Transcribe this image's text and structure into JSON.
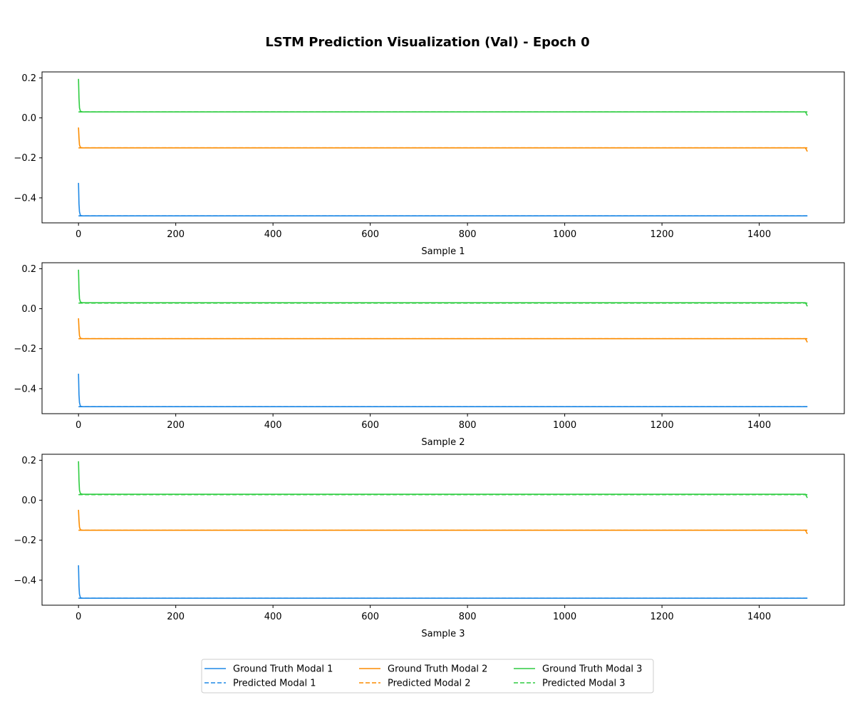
{
  "chart_data": {
    "type": "line",
    "title": "LSTM Prediction Visualization (Val) - Epoch 0",
    "colors": {
      "modal_1": "#1e88e5",
      "modal_2": "#fb8c00",
      "modal_3": "#2ecc40"
    },
    "legend": {
      "placement": "bottom-center",
      "ncol": 3,
      "entries": [
        {
          "label": "Ground Truth Modal 1",
          "color": "#1e88e5",
          "style": "solid"
        },
        {
          "label": "Predicted Modal 1",
          "color": "#1e88e5",
          "style": "dashed"
        },
        {
          "label": "Ground Truth Modal 2",
          "color": "#fb8c00",
          "style": "solid"
        },
        {
          "label": "Predicted Modal 2",
          "color": "#fb8c00",
          "style": "dashed"
        },
        {
          "label": "Ground Truth Modal 3",
          "color": "#2ecc40",
          "style": "solid"
        },
        {
          "label": "Predicted Modal 3",
          "color": "#2ecc40",
          "style": "dashed"
        }
      ]
    },
    "panels": [
      {
        "xlabel": "Sample 1",
        "xlim": [
          -75,
          1575
        ],
        "ylim": [
          -0.525,
          0.23
        ],
        "x_ticks": [
          0,
          200,
          400,
          600,
          800,
          1000,
          1200,
          1400
        ],
        "y_ticks": [
          -0.4,
          -0.2,
          0.0,
          0.2
        ],
        "x_tick_labels": [
          "0",
          "200",
          "400",
          "600",
          "800",
          "1000",
          "1200",
          "1400"
        ],
        "y_tick_labels": [
          "−0.4",
          "−0.2",
          "0.0",
          "0.2"
        ],
        "grid": false,
        "series": [
          {
            "name": "Ground Truth Modal 1",
            "color": "#1e88e5",
            "style": "solid",
            "points": [
              [
                0,
                -0.325
              ],
              [
                1,
                -0.43
              ],
              [
                2,
                -0.47
              ],
              [
                4,
                -0.488
              ],
              [
                8,
                -0.49
              ],
              [
                1499,
                -0.49
              ]
            ]
          },
          {
            "name": "Predicted Modal 1",
            "color": "#1e88e5",
            "style": "dashed",
            "points": [
              [
                0,
                -0.49
              ],
              [
                1499,
                -0.49
              ]
            ]
          },
          {
            "name": "Ground Truth Modal 2",
            "color": "#fb8c00",
            "style": "solid",
            "points": [
              [
                0,
                -0.048
              ],
              [
                1,
                -0.1
              ],
              [
                2,
                -0.135
              ],
              [
                4,
                -0.148
              ],
              [
                8,
                -0.15
              ],
              [
                1495,
                -0.15
              ],
              [
                1499,
                -0.168
              ]
            ]
          },
          {
            "name": "Predicted Modal 2",
            "color": "#fb8c00",
            "style": "dashed",
            "points": [
              [
                0,
                -0.15
              ],
              [
                1499,
                -0.15
              ]
            ]
          },
          {
            "name": "Ground Truth Modal 3",
            "color": "#2ecc40",
            "style": "solid",
            "points": [
              [
                0,
                0.195
              ],
              [
                1,
                0.1
              ],
              [
                2,
                0.05
              ],
              [
                4,
                0.033
              ],
              [
                8,
                0.03
              ],
              [
                1495,
                0.03
              ],
              [
                1499,
                0.012
              ]
            ]
          },
          {
            "name": "Predicted Modal 3",
            "color": "#2ecc40",
            "style": "dashed",
            "points": [
              [
                0,
                0.03
              ],
              [
                1499,
                0.03
              ]
            ]
          }
        ]
      },
      {
        "xlabel": "Sample 2",
        "xlim": [
          -75,
          1575
        ],
        "ylim": [
          -0.525,
          0.23
        ],
        "x_ticks": [
          0,
          200,
          400,
          600,
          800,
          1000,
          1200,
          1400
        ],
        "y_ticks": [
          -0.4,
          -0.2,
          0.0,
          0.2
        ],
        "x_tick_labels": [
          "0",
          "200",
          "400",
          "600",
          "800",
          "1000",
          "1200",
          "1400"
        ],
        "y_tick_labels": [
          "−0.4",
          "−0.2",
          "0.0",
          "0.2"
        ],
        "grid": false,
        "series": [
          {
            "name": "Ground Truth Modal 1",
            "color": "#1e88e5",
            "style": "solid",
            "points": [
              [
                0,
                -0.325
              ],
              [
                1,
                -0.43
              ],
              [
                2,
                -0.47
              ],
              [
                4,
                -0.488
              ],
              [
                8,
                -0.49
              ],
              [
                1499,
                -0.49
              ]
            ]
          },
          {
            "name": "Predicted Modal 1",
            "color": "#1e88e5",
            "style": "dashed",
            "points": [
              [
                0,
                -0.49
              ],
              [
                1499,
                -0.49
              ]
            ]
          },
          {
            "name": "Ground Truth Modal 2",
            "color": "#fb8c00",
            "style": "solid",
            "points": [
              [
                0,
                -0.048
              ],
              [
                1,
                -0.1
              ],
              [
                2,
                -0.135
              ],
              [
                4,
                -0.148
              ],
              [
                8,
                -0.15
              ],
              [
                1495,
                -0.15
              ],
              [
                1499,
                -0.168
              ]
            ]
          },
          {
            "name": "Predicted Modal 2",
            "color": "#fb8c00",
            "style": "dashed",
            "points": [
              [
                0,
                -0.15
              ],
              [
                1499,
                -0.15
              ]
            ]
          },
          {
            "name": "Ground Truth Modal 3",
            "color": "#2ecc40",
            "style": "solid",
            "points": [
              [
                0,
                0.195
              ],
              [
                1,
                0.1
              ],
              [
                2,
                0.05
              ],
              [
                4,
                0.033
              ],
              [
                8,
                0.03
              ],
              [
                1495,
                0.03
              ],
              [
                1499,
                0.012
              ]
            ]
          },
          {
            "name": "Predicted Modal 3",
            "color": "#2ecc40",
            "style": "dashed",
            "points": [
              [
                0,
                0.028
              ],
              [
                1499,
                0.028
              ]
            ]
          }
        ]
      },
      {
        "xlabel": "Sample 3",
        "xlim": [
          -75,
          1575
        ],
        "ylim": [
          -0.525,
          0.23
        ],
        "x_ticks": [
          0,
          200,
          400,
          600,
          800,
          1000,
          1200,
          1400
        ],
        "y_ticks": [
          -0.4,
          -0.2,
          0.0,
          0.2
        ],
        "x_tick_labels": [
          "0",
          "200",
          "400",
          "600",
          "800",
          "1000",
          "1200",
          "1400"
        ],
        "y_tick_labels": [
          "−0.4",
          "−0.2",
          "0.0",
          "0.2"
        ],
        "grid": false,
        "series": [
          {
            "name": "Ground Truth Modal 1",
            "color": "#1e88e5",
            "style": "solid",
            "points": [
              [
                0,
                -0.325
              ],
              [
                1,
                -0.43
              ],
              [
                2,
                -0.47
              ],
              [
                4,
                -0.488
              ],
              [
                8,
                -0.49
              ],
              [
                1499,
                -0.49
              ]
            ]
          },
          {
            "name": "Predicted Modal 1",
            "color": "#1e88e5",
            "style": "dashed",
            "points": [
              [
                0,
                -0.49
              ],
              [
                1499,
                -0.49
              ]
            ]
          },
          {
            "name": "Ground Truth Modal 2",
            "color": "#fb8c00",
            "style": "solid",
            "points": [
              [
                0,
                -0.048
              ],
              [
                1,
                -0.1
              ],
              [
                2,
                -0.135
              ],
              [
                4,
                -0.148
              ],
              [
                8,
                -0.15
              ],
              [
                1495,
                -0.15
              ],
              [
                1499,
                -0.168
              ]
            ]
          },
          {
            "name": "Predicted Modal 2",
            "color": "#fb8c00",
            "style": "dashed",
            "points": [
              [
                0,
                -0.15
              ],
              [
                1499,
                -0.15
              ]
            ]
          },
          {
            "name": "Ground Truth Modal 3",
            "color": "#2ecc40",
            "style": "solid",
            "points": [
              [
                0,
                0.195
              ],
              [
                1,
                0.1
              ],
              [
                2,
                0.05
              ],
              [
                4,
                0.033
              ],
              [
                8,
                0.03
              ],
              [
                1495,
                0.03
              ],
              [
                1499,
                0.012
              ]
            ]
          },
          {
            "name": "Predicted Modal 3",
            "color": "#2ecc40",
            "style": "dashed",
            "points": [
              [
                0,
                0.028
              ],
              [
                1499,
                0.028
              ]
            ]
          }
        ]
      }
    ]
  }
}
